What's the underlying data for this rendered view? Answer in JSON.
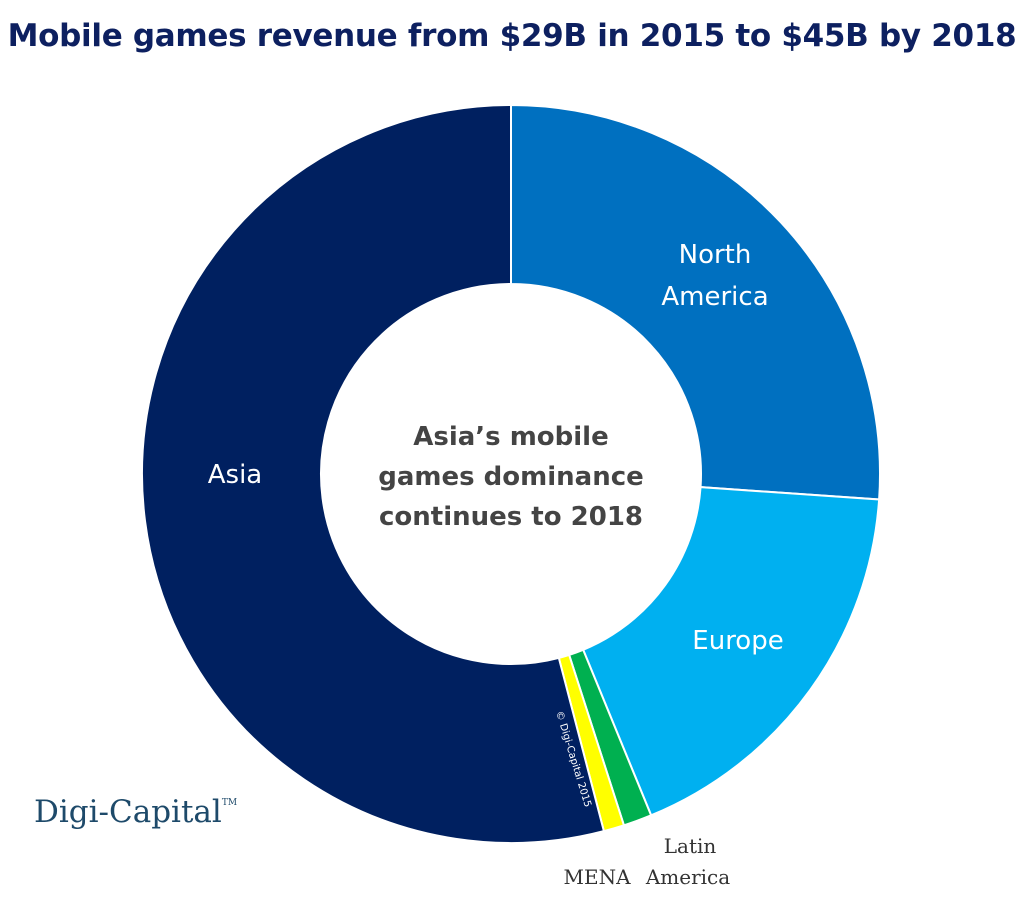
{
  "chart_data": {
    "type": "pie",
    "variant": "donut",
    "title": "Mobile games revenue from $29B in 2015 to $45B by 2018",
    "center_text": [
      "Asia’s mobile",
      "games dominance",
      "continues to 2018"
    ],
    "unit": "percent share (estimated)",
    "start": "top, clockwise",
    "slices": [
      {
        "label": "North America",
        "label_lines": [
          "North",
          "America"
        ],
        "value": 26.1,
        "color": "#0070c0"
      },
      {
        "label": "Europe",
        "label_lines": [
          "Europe"
        ],
        "value": 17.7,
        "color": "#00b0f0"
      },
      {
        "label": "Latin America",
        "label_lines": [
          "Latin",
          "America"
        ],
        "value": 1.25,
        "color": "#00b050"
      },
      {
        "label": "MENA",
        "label_lines": [
          "MENA"
        ],
        "value": 0.9,
        "color": "#ffff00"
      },
      {
        "label": "Asia",
        "label_lines": [
          "Asia"
        ],
        "value": 54.05,
        "color": "#002060"
      }
    ],
    "copyright": "© Digi-Capital 2015",
    "legend": "none"
  },
  "logo": {
    "text": "Digi-Capital",
    "tm": "TM"
  }
}
